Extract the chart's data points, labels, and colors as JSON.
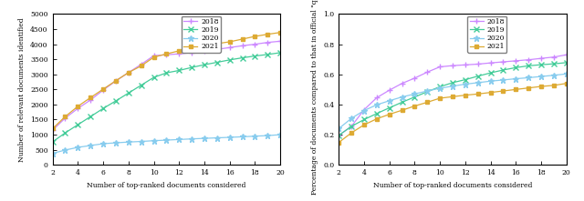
{
  "x": [
    2,
    3,
    4,
    5,
    6,
    7,
    8,
    9,
    10,
    11,
    12,
    13,
    14,
    15,
    16,
    17,
    18,
    19,
    20
  ],
  "left_2018": [
    1150,
    1550,
    1870,
    2150,
    2480,
    2780,
    3060,
    3330,
    3620,
    3650,
    3680,
    3720,
    3770,
    3830,
    3890,
    3950,
    4000,
    4060,
    4100
  ],
  "left_2019": [
    760,
    1060,
    1330,
    1600,
    1870,
    2120,
    2380,
    2640,
    2900,
    3050,
    3130,
    3230,
    3320,
    3400,
    3480,
    3550,
    3610,
    3660,
    3720
  ],
  "left_2020": [
    380,
    490,
    580,
    640,
    700,
    730,
    755,
    775,
    800,
    820,
    840,
    860,
    878,
    895,
    912,
    930,
    950,
    970,
    1000
  ],
  "left_2021": [
    1200,
    1600,
    1940,
    2230,
    2510,
    2790,
    3060,
    3280,
    3570,
    3680,
    3780,
    3860,
    3950,
    4020,
    4080,
    4170,
    4260,
    4330,
    4390
  ],
  "right_2018": [
    0.195,
    0.255,
    0.365,
    0.445,
    0.495,
    0.54,
    0.575,
    0.615,
    0.65,
    0.658,
    0.663,
    0.668,
    0.676,
    0.683,
    0.69,
    0.697,
    0.706,
    0.715,
    0.73
  ],
  "right_2019": [
    0.195,
    0.255,
    0.3,
    0.34,
    0.378,
    0.415,
    0.45,
    0.485,
    0.518,
    0.545,
    0.565,
    0.588,
    0.61,
    0.629,
    0.645,
    0.657,
    0.664,
    0.67,
    0.678
  ],
  "right_2020": [
    0.24,
    0.308,
    0.36,
    0.398,
    0.425,
    0.45,
    0.47,
    0.49,
    0.508,
    0.522,
    0.535,
    0.545,
    0.555,
    0.563,
    0.571,
    0.578,
    0.586,
    0.594,
    0.603
  ],
  "right_2021": [
    0.148,
    0.212,
    0.265,
    0.305,
    0.335,
    0.362,
    0.39,
    0.415,
    0.442,
    0.452,
    0.462,
    0.47,
    0.48,
    0.49,
    0.5,
    0.51,
    0.52,
    0.527,
    0.54
  ],
  "color_2018": "#cc88ff",
  "color_2019": "#44cc99",
  "color_2020": "#88ccee",
  "color_2021": "#ddaa33",
  "marker_2018": "+",
  "marker_2019": "x",
  "marker_2020": "*",
  "marker_2021": "s",
  "left_ylabel": "Number of relevant documents identified",
  "left_xlabel": "Number of top-ranked documents considered",
  "right_ylabel": "Percentage of documents compared to that in official \"qrels\"",
  "right_xlabel": "Number of top-ranked documents considered",
  "left_ylim": [
    0,
    5000
  ],
  "left_yticks": [
    0,
    500,
    1000,
    1500,
    2000,
    2500,
    3000,
    3500,
    4000,
    4500,
    5000
  ],
  "right_ylim": [
    0,
    1
  ],
  "right_yticks": [
    0,
    0.2,
    0.4,
    0.6,
    0.8,
    1.0
  ],
  "xticks": [
    2,
    4,
    6,
    8,
    10,
    12,
    14,
    16,
    18,
    20
  ]
}
